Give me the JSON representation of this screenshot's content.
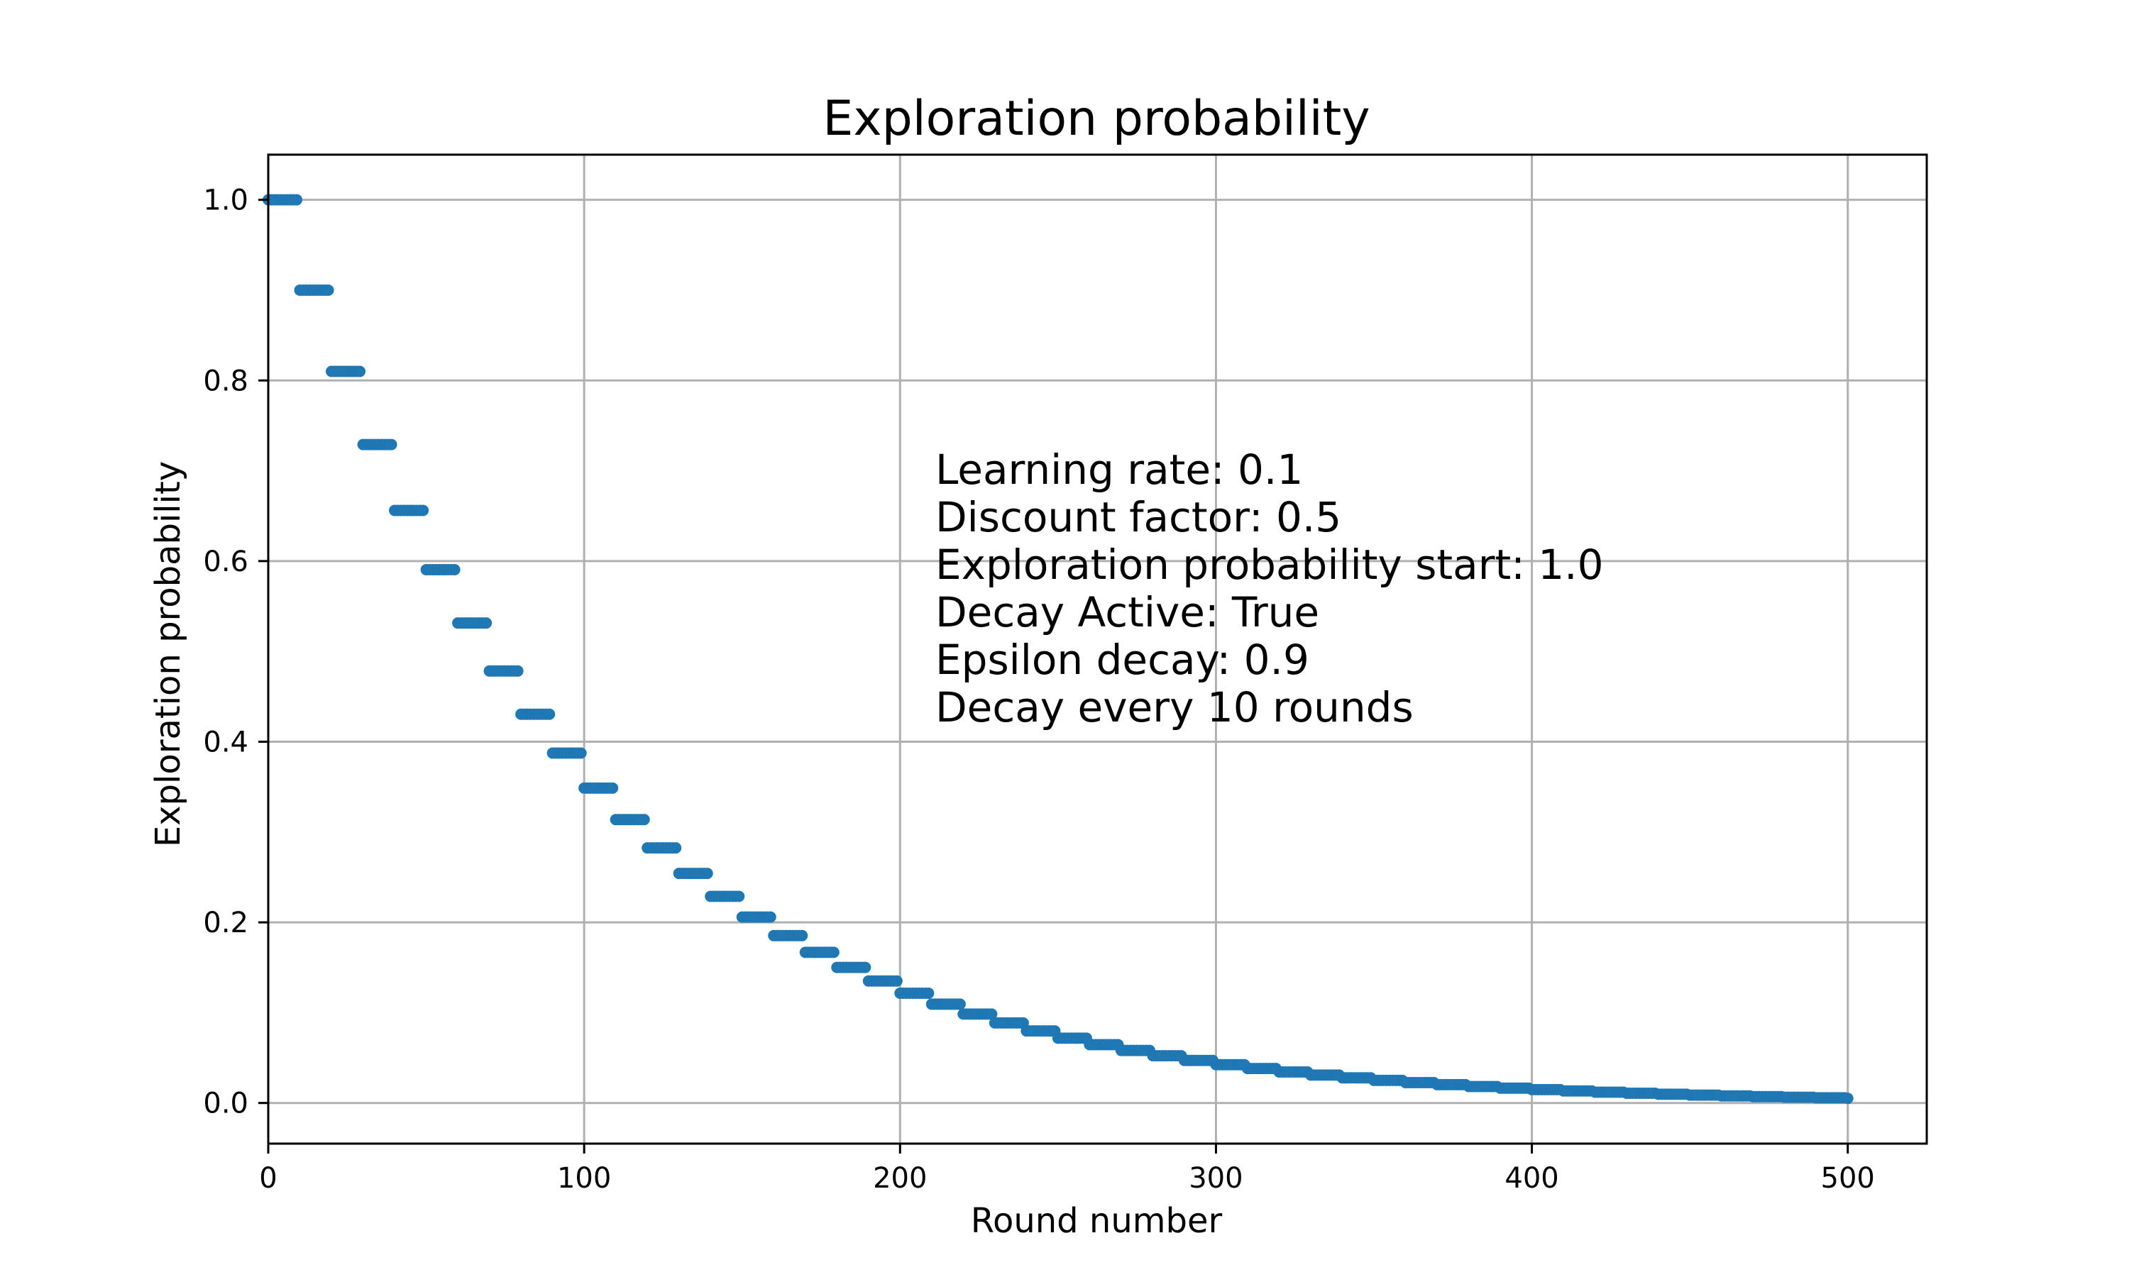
{
  "chart_data": {
    "type": "scatter",
    "title": "Exploration probability",
    "xlabel": "Round number",
    "ylabel": "Exploration probability",
    "xlim": [
      0,
      525
    ],
    "ylim": [
      -0.045,
      1.05
    ],
    "x_ticks": [
      0,
      100,
      200,
      300,
      400,
      500
    ],
    "x_tick_labels": [
      "0",
      "100",
      "200",
      "300",
      "400",
      "500"
    ],
    "y_ticks": [
      0.0,
      0.2,
      0.4,
      0.6,
      0.8,
      1.0
    ],
    "y_tick_labels": [
      "0.0",
      "0.2",
      "0.4",
      "0.6",
      "0.8",
      "1.0"
    ],
    "grid": true,
    "series_color": "#1f77b4",
    "x_range": [
      0,
      500
    ],
    "initial_value": 1.0,
    "decay_factor": 0.9,
    "decay_interval": 10,
    "series": [
      {
        "x_start": [
          0,
          10,
          20,
          30,
          40,
          50,
          60,
          70,
          80,
          90,
          100,
          110,
          120,
          130,
          140,
          150,
          160,
          170,
          180,
          190,
          200,
          210,
          220,
          230,
          240,
          250,
          260,
          270,
          280,
          290,
          300,
          310,
          320,
          330,
          340,
          350,
          360,
          370,
          380,
          390,
          400,
          410,
          420,
          430,
          440,
          450,
          460,
          470,
          480,
          490,
          500
        ],
        "values": [
          1.0,
          0.9,
          0.81,
          0.729,
          0.6561,
          0.59049,
          0.531441,
          0.478297,
          0.430467,
          0.38742,
          0.348678,
          0.313811,
          0.28243,
          0.254187,
          0.228768,
          0.205891,
          0.185302,
          0.166772,
          0.150095,
          0.135085,
          0.121577,
          0.109419,
          0.098477,
          0.088629,
          0.079766,
          0.07179,
          0.064611,
          0.05815,
          0.052335,
          0.047101,
          0.042391,
          0.038152,
          0.034337,
          0.030903,
          0.027813,
          0.025032,
          0.022528,
          0.020276,
          0.018248,
          0.016423,
          0.014781,
          0.013303,
          0.011973,
          0.010775,
          0.009698,
          0.008728,
          0.007855,
          0.00707,
          0.006363,
          0.005726,
          0.005154
        ]
      }
    ],
    "annotation_lines": [
      "Learning rate: 0.1",
      "Discount factor: 0.5",
      "Exploration probability start: 1.0",
      "Decay Active: True",
      "Epsilon decay: 0.9",
      "Decay every 10 rounds"
    ]
  }
}
